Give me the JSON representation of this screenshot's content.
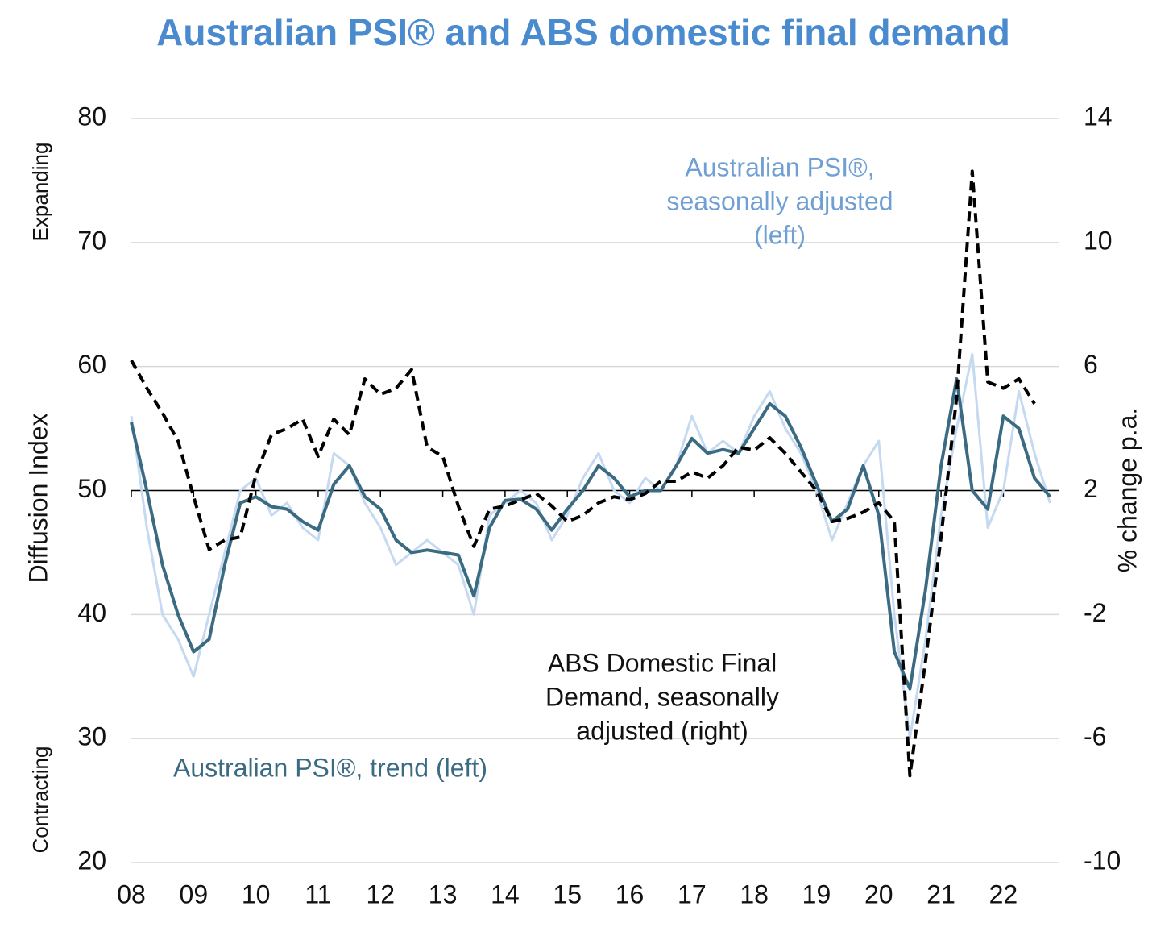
{
  "chart_data": {
    "type": "line",
    "title": "Australian PSI® and ABS domestic final demand",
    "ylabel": "Diffusion Index",
    "y2label": "% change p.a.",
    "top_note": "Expanding",
    "bottom_note": "Contracting",
    "x": [
      2008,
      2008.25,
      2008.5,
      2008.75,
      2009,
      2009.25,
      2009.5,
      2009.75,
      2010,
      2010.25,
      2010.5,
      2010.75,
      2011,
      2011.25,
      2011.5,
      2011.75,
      2012,
      2012.25,
      2012.5,
      2012.75,
      2013,
      2013.25,
      2013.5,
      2013.75,
      2014,
      2014.25,
      2014.5,
      2014.75,
      2015,
      2015.25,
      2015.5,
      2015.75,
      2016,
      2016.25,
      2016.5,
      2016.75,
      2017,
      2017.25,
      2017.5,
      2017.75,
      2018,
      2018.25,
      2018.5,
      2018.75,
      2019,
      2019.25,
      2019.5,
      2019.75,
      2020,
      2020.25,
      2020.5,
      2020.75,
      2021,
      2021.25,
      2021.5,
      2021.75,
      2022,
      2022.25,
      2022.5,
      2022.75
    ],
    "xlim": [
      2008,
      2022.9
    ],
    "xticks": [
      {
        "value": 2008,
        "label": "08"
      },
      {
        "value": 2009,
        "label": "09"
      },
      {
        "value": 2010,
        "label": "10"
      },
      {
        "value": 2011,
        "label": "11"
      },
      {
        "value": 2012,
        "label": "12"
      },
      {
        "value": 2013,
        "label": "13"
      },
      {
        "value": 2014,
        "label": "14"
      },
      {
        "value": 2015,
        "label": "15"
      },
      {
        "value": 2016,
        "label": "16"
      },
      {
        "value": 2017,
        "label": "17"
      },
      {
        "value": 2018,
        "label": "18"
      },
      {
        "value": 2019,
        "label": "19"
      },
      {
        "value": 2020,
        "label": "20"
      },
      {
        "value": 2021,
        "label": "21"
      },
      {
        "value": 2022,
        "label": "22"
      }
    ],
    "ylim": [
      20,
      80
    ],
    "yticks": [
      20,
      30,
      40,
      50,
      60,
      70,
      80
    ],
    "y2lim": [
      -10,
      14
    ],
    "y2ticks": [
      -10,
      -6,
      -2,
      2,
      6,
      10,
      14
    ],
    "baseline": 50,
    "grid": true,
    "series": [
      {
        "label": [
          "Australian PSI®,",
          "seasonally adjusted",
          "(left)"
        ],
        "color": "#c5d9f1",
        "dash": false,
        "values": [
          56,
          47,
          40,
          38,
          35,
          40,
          45,
          50,
          51,
          48,
          49,
          47,
          46,
          53,
          52,
          49,
          47,
          44,
          45,
          46,
          45,
          44,
          40,
          48,
          49,
          50,
          49,
          46,
          48,
          51,
          53,
          50,
          49,
          51,
          50,
          52,
          56,
          53,
          54,
          53,
          56,
          58,
          55,
          53,
          50,
          46,
          49,
          52,
          54,
          40,
          30,
          38,
          48,
          55,
          61,
          47,
          50,
          58,
          53,
          49
        ]
      },
      {
        "label": [
          "Australian PSI®, trend (left)"
        ],
        "color": "#3a6b82",
        "dash": false,
        "values": [
          55.5,
          50,
          44,
          40,
          37,
          38,
          44,
          49,
          49.5,
          48.7,
          48.5,
          47.5,
          46.8,
          50.5,
          52,
          49.5,
          48.5,
          46,
          45,
          45.2,
          45,
          44.8,
          41.5,
          47,
          49.2,
          49.3,
          48.5,
          46.8,
          48.5,
          50,
          52,
          51,
          49.5,
          50,
          50,
          52,
          54.2,
          53,
          53.3,
          53,
          55,
          57,
          56,
          53.5,
          50.5,
          47.5,
          48.5,
          52,
          48,
          37,
          34,
          42,
          52,
          59,
          50,
          48.5,
          56,
          55,
          51,
          49.5
        ]
      },
      {
        "label": [
          "ABS Domestic Final",
          "Demand, seasonally",
          "adjusted (right)"
        ],
        "color": "#000000",
        "dash": true,
        "axis": "y2",
        "values": [
          6.2,
          5.3,
          4.5,
          3.6,
          1.8,
          0.1,
          0.4,
          0.5,
          2.5,
          3.8,
          4.0,
          4.3,
          3.1,
          4.3,
          3.8,
          5.6,
          5.1,
          5.3,
          5.9,
          3.4,
          3.1,
          1.5,
          0.2,
          1.4,
          1.5,
          1.7,
          1.9,
          1.5,
          1.0,
          1.2,
          1.6,
          1.8,
          1.7,
          1.9,
          2.3,
          2.3,
          2.6,
          2.4,
          2.8,
          3.4,
          3.3,
          3.7,
          3.2,
          2.6,
          2.0,
          1.0,
          1.1,
          1.3,
          1.6,
          1.0,
          -7.2,
          -3.5,
          0.5,
          5.0,
          12.3,
          5.5,
          5.3,
          5.6,
          4.8,
          null
        ]
      }
    ]
  }
}
